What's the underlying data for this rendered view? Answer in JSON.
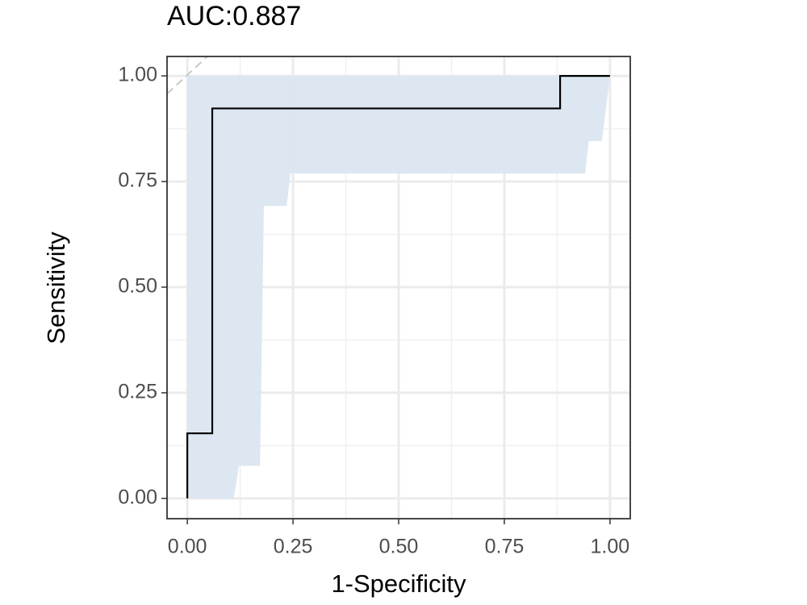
{
  "chart_data": {
    "type": "roc",
    "title": "AUC:0.887",
    "x_label": "1-Specificity",
    "y_label": "Sensitivity",
    "x": [
      0,
      0,
      0.059,
      0.059,
      0.882,
      0.882,
      1
    ],
    "values": [
      0,
      0.154,
      0.154,
      0.923,
      0.923,
      1,
      1
    ],
    "color": "#000000",
    "band": {
      "x": [
        0,
        0.11,
        0.122,
        0.172,
        0.181,
        0.235,
        0.244,
        0.941,
        0.95,
        0.981,
        1
      ],
      "lower": [
        0,
        0,
        0.077,
        0.077,
        0.692,
        0.692,
        0.769,
        0.769,
        0.846,
        0.846,
        1
      ],
      "upper": [
        1,
        1,
        1,
        1,
        1,
        1,
        1,
        1,
        1,
        1,
        1
      ],
      "color": "#dae6f0"
    },
    "xlim": [
      -0.048,
      1.048
    ],
    "ylim": [
      -0.048,
      1.046
    ],
    "xticks": [
      {
        "value": 0,
        "label": "0.00"
      },
      {
        "value": 0.25,
        "label": "0.25"
      },
      {
        "value": 0.5,
        "label": "0.50"
      },
      {
        "value": 0.75,
        "label": "0.75"
      },
      {
        "value": 1,
        "label": "1.00"
      }
    ],
    "yticks": [
      {
        "value": 0,
        "label": "0.00"
      },
      {
        "value": 0.25,
        "label": "0.25"
      },
      {
        "value": 0.5,
        "label": "0.50"
      },
      {
        "value": 0.75,
        "label": "0.75"
      },
      {
        "value": 1,
        "label": "1.00"
      }
    ],
    "minor_grid": [
      0.125,
      0.375,
      0.625,
      0.875
    ],
    "grid": true
  }
}
